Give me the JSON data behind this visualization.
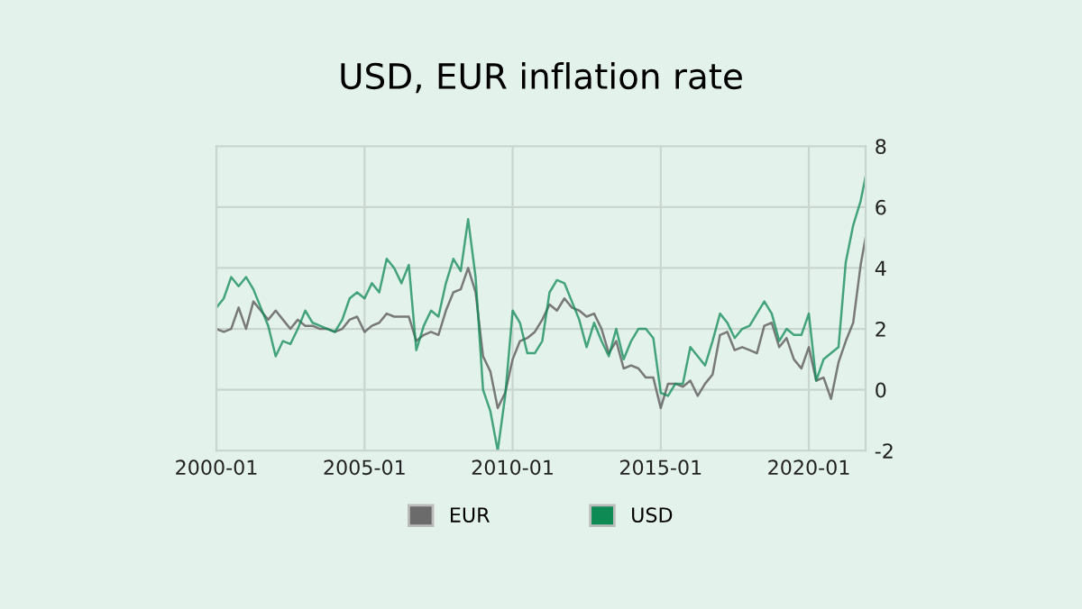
{
  "chart_data": {
    "type": "line",
    "title": "USD, EUR inflation rate",
    "x": [
      "2000-01",
      "2000-04",
      "2000-07",
      "2000-10",
      "2001-01",
      "2001-04",
      "2001-07",
      "2001-10",
      "2002-01",
      "2002-04",
      "2002-07",
      "2002-10",
      "2003-01",
      "2003-04",
      "2003-07",
      "2003-10",
      "2004-01",
      "2004-04",
      "2004-07",
      "2004-10",
      "2005-01",
      "2005-04",
      "2005-07",
      "2005-10",
      "2006-01",
      "2006-04",
      "2006-07",
      "2006-10",
      "2007-01",
      "2007-04",
      "2007-07",
      "2007-10",
      "2008-01",
      "2008-04",
      "2008-07",
      "2008-10",
      "2009-01",
      "2009-04",
      "2009-07",
      "2009-10",
      "2010-01",
      "2010-04",
      "2010-07",
      "2010-10",
      "2011-01",
      "2011-04",
      "2011-07",
      "2011-10",
      "2012-01",
      "2012-04",
      "2012-07",
      "2012-10",
      "2013-01",
      "2013-04",
      "2013-07",
      "2013-10",
      "2014-01",
      "2014-04",
      "2014-07",
      "2014-10",
      "2015-01",
      "2015-04",
      "2015-07",
      "2015-10",
      "2016-01",
      "2016-04",
      "2016-07",
      "2016-10",
      "2017-01",
      "2017-04",
      "2017-07",
      "2017-10",
      "2018-01",
      "2018-04",
      "2018-07",
      "2018-10",
      "2019-01",
      "2019-04",
      "2019-07",
      "2019-10",
      "2020-01",
      "2020-04",
      "2020-07",
      "2020-10",
      "2021-01",
      "2021-04",
      "2021-07",
      "2021-10",
      "2021-12"
    ],
    "series": [
      {
        "name": "EUR",
        "color": "#6b6b6b",
        "values": [
          2.0,
          1.9,
          2.0,
          2.7,
          2.0,
          2.9,
          2.6,
          2.3,
          2.6,
          2.3,
          2.0,
          2.3,
          2.1,
          2.1,
          2.0,
          2.0,
          1.9,
          2.0,
          2.3,
          2.4,
          1.9,
          2.1,
          2.2,
          2.5,
          2.4,
          2.4,
          2.4,
          1.6,
          1.8,
          1.9,
          1.8,
          2.6,
          3.2,
          3.3,
          4.0,
          3.2,
          1.1,
          0.6,
          -0.6,
          -0.1,
          1.0,
          1.6,
          1.7,
          1.9,
          2.3,
          2.8,
          2.6,
          3.0,
          2.7,
          2.6,
          2.4,
          2.5,
          2.0,
          1.2,
          1.6,
          0.7,
          0.8,
          0.7,
          0.4,
          0.4,
          -0.6,
          0.2,
          0.2,
          0.1,
          0.3,
          -0.2,
          0.2,
          0.5,
          1.8,
          1.9,
          1.3,
          1.4,
          1.3,
          1.2,
          2.1,
          2.2,
          1.4,
          1.7,
          1.0,
          0.7,
          1.4,
          0.3,
          0.4,
          -0.3,
          0.9,
          1.6,
          2.2,
          4.1,
          5.0
        ]
      },
      {
        "name": "USD",
        "color": "#0e8a55",
        "values": [
          2.7,
          3.0,
          3.7,
          3.4,
          3.7,
          3.3,
          2.7,
          2.1,
          1.1,
          1.6,
          1.5,
          2.0,
          2.6,
          2.2,
          2.1,
          2.0,
          1.9,
          2.3,
          3.0,
          3.2,
          3.0,
          3.5,
          3.2,
          4.3,
          4.0,
          3.5,
          4.1,
          1.3,
          2.1,
          2.6,
          2.4,
          3.5,
          4.3,
          3.9,
          5.6,
          3.7,
          0.0,
          -0.7,
          -2.0,
          -0.2,
          2.6,
          2.2,
          1.2,
          1.2,
          1.6,
          3.2,
          3.6,
          3.5,
          2.9,
          2.3,
          1.4,
          2.2,
          1.6,
          1.1,
          2.0,
          1.0,
          1.6,
          2.0,
          2.0,
          1.7,
          -0.1,
          -0.2,
          0.2,
          0.2,
          1.4,
          1.1,
          0.8,
          1.6,
          2.5,
          2.2,
          1.7,
          2.0,
          2.1,
          2.5,
          2.9,
          2.5,
          1.6,
          2.0,
          1.8,
          1.8,
          2.5,
          0.3,
          1.0,
          1.2,
          1.4,
          4.2,
          5.4,
          6.2,
          7.0
        ]
      }
    ],
    "xlim": [
      "2000-01",
      "2021-12"
    ],
    "xticks": [
      "2000-01",
      "2005-01",
      "2010-01",
      "2015-01",
      "2020-01"
    ],
    "ylim": [
      -2,
      8
    ],
    "yticks": [
      -2,
      0,
      2,
      4,
      6,
      8
    ],
    "grid": true,
    "legend": "bottom",
    "marker": "none",
    "line_style": "solid"
  }
}
